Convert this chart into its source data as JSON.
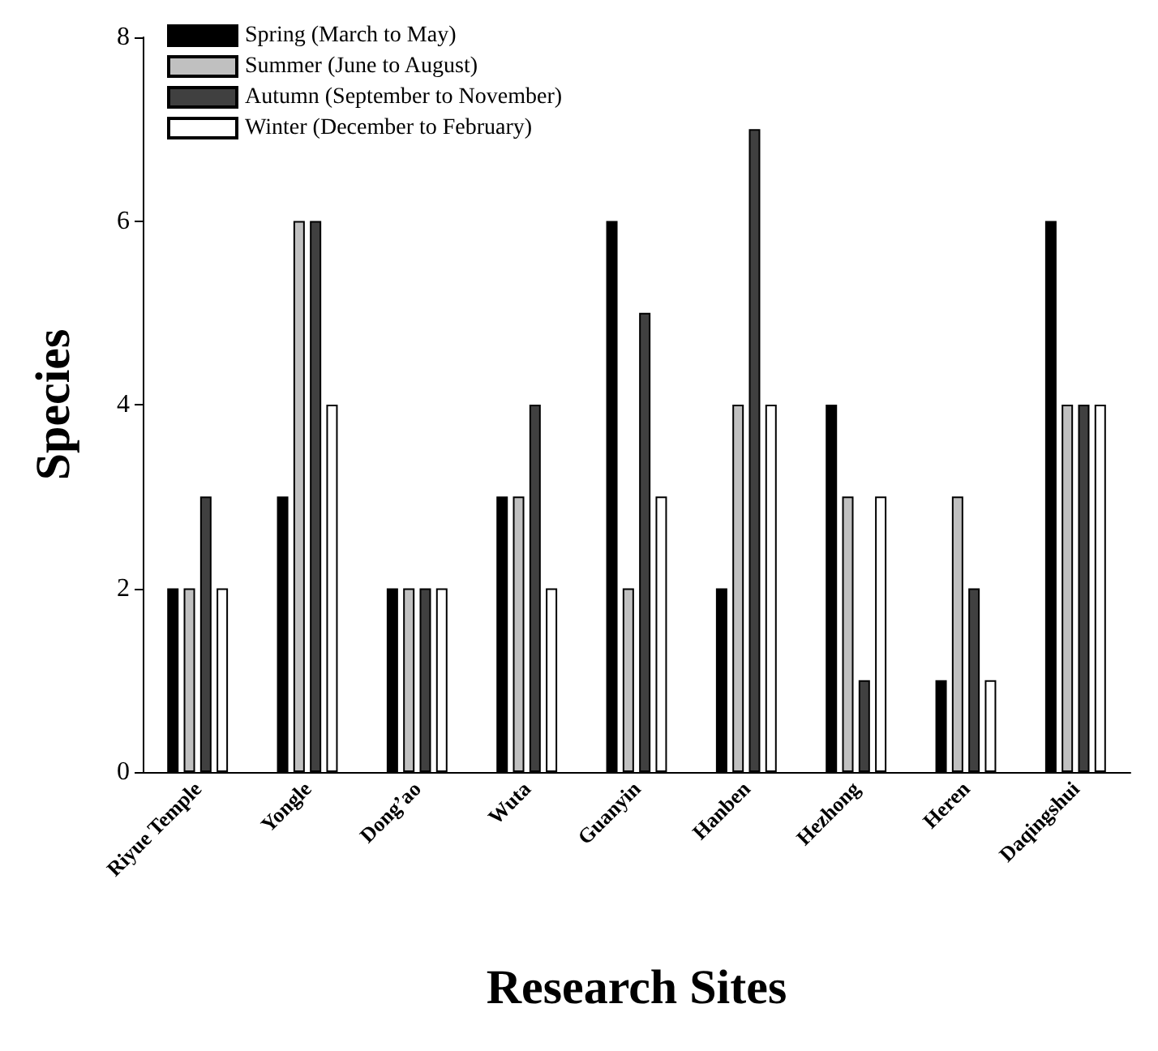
{
  "chart_data": {
    "type": "bar",
    "xlabel": "Research Sites",
    "ylabel": "Species",
    "categories": [
      "Riyue Temple",
      "Yongle",
      "Dong’ao",
      "Wuta",
      "Guanyin",
      "Hanben",
      "Hezhong",
      "Heren",
      "Daqingshui"
    ],
    "series": [
      {
        "name": "Spring (March to May)",
        "color": "#000000",
        "values": [
          2,
          3,
          2,
          3,
          6,
          2,
          4,
          1,
          6
        ]
      },
      {
        "name": "Summer (June to August)",
        "color": "#c0c0c0",
        "values": [
          2,
          6,
          2,
          3,
          2,
          4,
          3,
          3,
          4
        ]
      },
      {
        "name": "Autumn (September to November)",
        "color": "#404040",
        "values": [
          3,
          6,
          2,
          4,
          5,
          7,
          1,
          2,
          4
        ]
      },
      {
        "name": "Winter (December to February)",
        "color": "#ffffff",
        "values": [
          2,
          4,
          2,
          2,
          3,
          4,
          3,
          1,
          4
        ]
      }
    ],
    "ylim": [
      0,
      8
    ],
    "yticks": [
      0,
      2,
      4,
      6,
      8
    ],
    "grid": false,
    "legend": "top left"
  }
}
